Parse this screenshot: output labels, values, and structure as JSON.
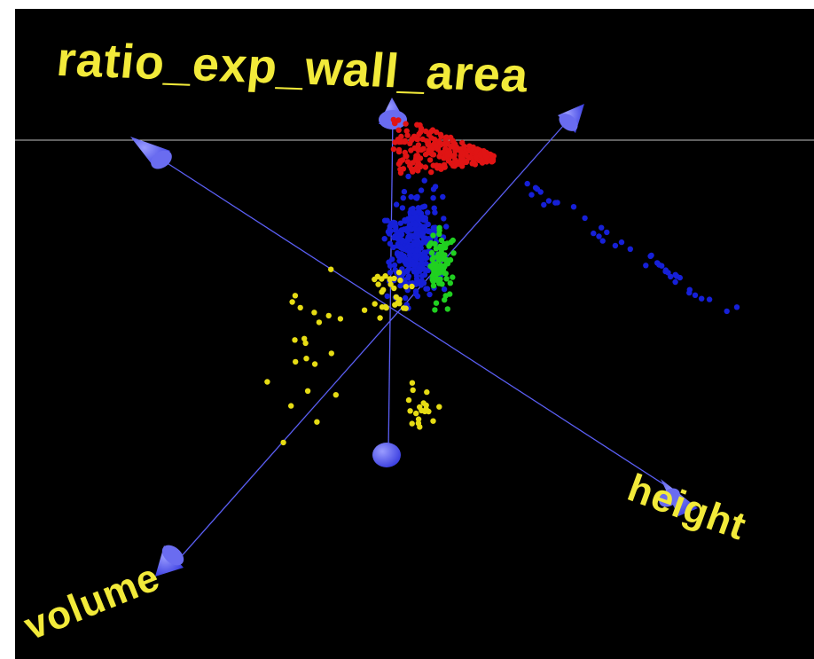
{
  "chart_data": {
    "type": "scatter",
    "subtype": "3d-scatter",
    "background": "#000000",
    "axis_color": "#5b5ff5",
    "axes": {
      "x": {
        "label": "height"
      },
      "y": {
        "label": "ratio_exp_wall_area"
      },
      "z": {
        "label": "volume"
      }
    },
    "grid": false,
    "legend": "none",
    "series": [
      {
        "color": "#e01414",
        "count": 260
      },
      {
        "color": "#1620d8",
        "count": 360
      },
      {
        "color": "#20d020",
        "count": 80
      },
      {
        "color": "#e6dc14",
        "count": 70
      }
    ]
  }
}
